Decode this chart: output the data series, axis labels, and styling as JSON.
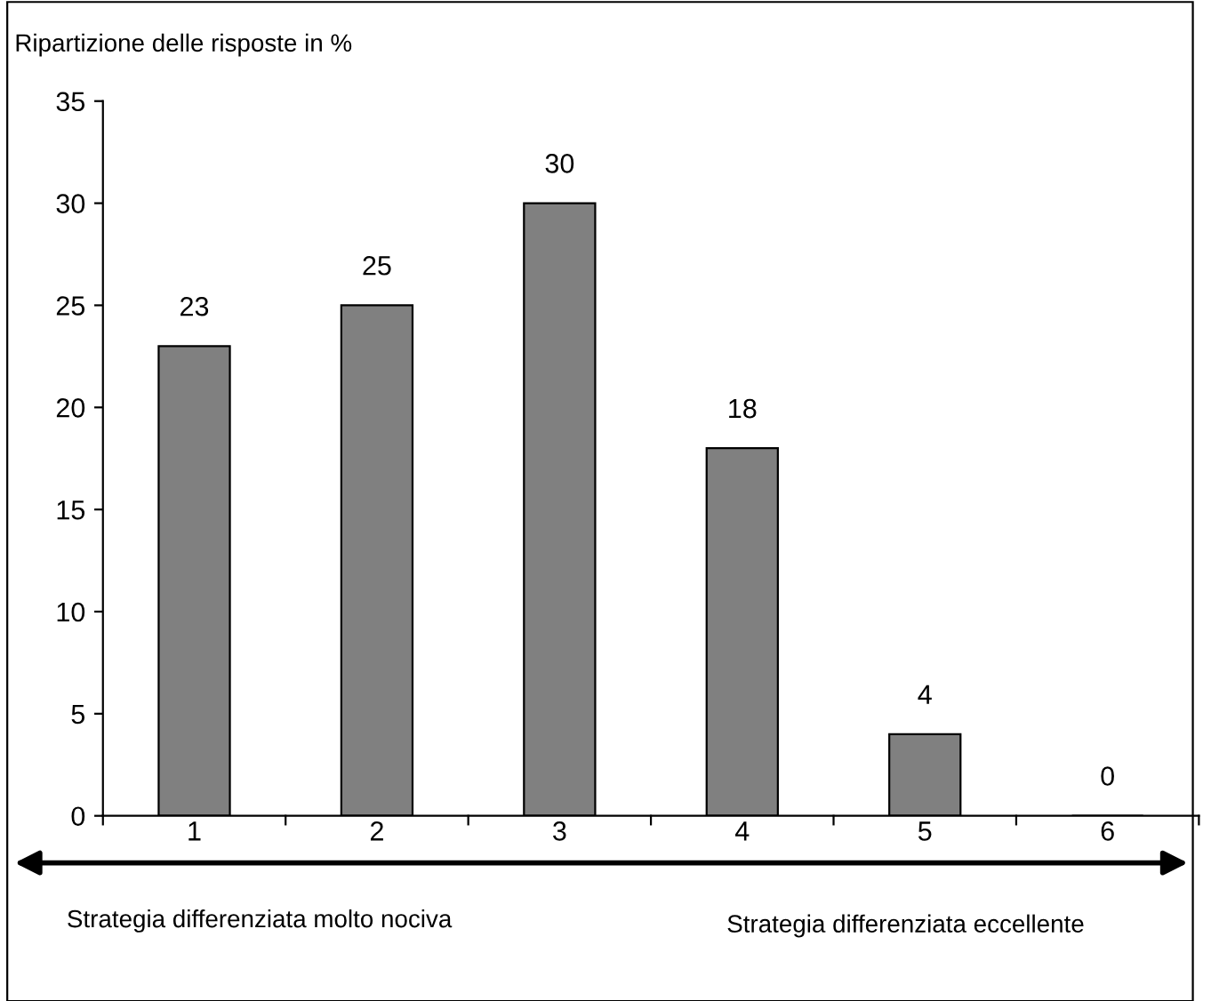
{
  "chart_data": {
    "type": "bar",
    "ylabel": "Ripartizione delle risposte in %",
    "categories": [
      "1",
      "2",
      "3",
      "4",
      "5",
      "6"
    ],
    "values": [
      23,
      25,
      30,
      18,
      4,
      0
    ],
    "color": "#808080",
    "ylim": [
      0,
      35
    ],
    "yticks": [
      0,
      5,
      10,
      15,
      20,
      25,
      30,
      35
    ],
    "data_labels": true,
    "grid": false,
    "annotations": [
      "Strategia differenziata molto nociva",
      "Strategia differenziata eccellente"
    ]
  }
}
